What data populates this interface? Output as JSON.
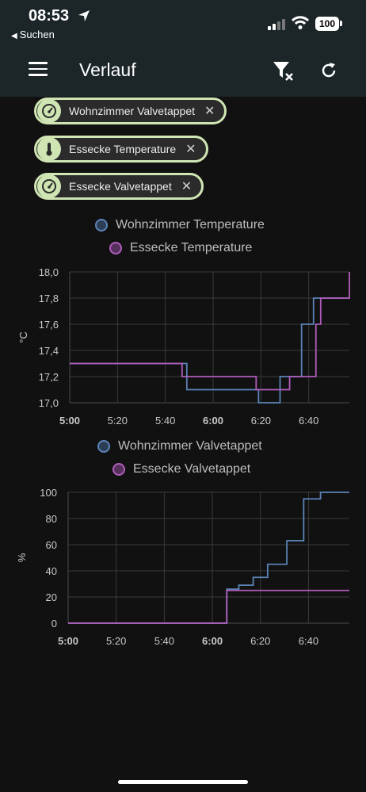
{
  "status_bar": {
    "time": "08:53",
    "back_label": "Suchen",
    "battery": "100"
  },
  "header": {
    "title": "Verlauf"
  },
  "chips": [
    {
      "label": "Wohnzimmer Valvetappet",
      "icon": "gauge-icon"
    },
    {
      "label": "Essecke Temperature",
      "icon": "thermometer-icon"
    },
    {
      "label": "Essecke Valvetappet",
      "icon": "gauge-icon"
    }
  ],
  "colors": {
    "series_blue": "#5b84b8",
    "series_purple": "#b05dbb",
    "chip_accent": "#cfe5b3",
    "header_bg": "#1c2629"
  },
  "chart_data": [
    {
      "type": "line",
      "ylabel": "°C",
      "ylim": [
        17.0,
        18.0
      ],
      "yticks": [
        "17,0",
        "17,2",
        "17,4",
        "17,6",
        "17,8",
        "18,0"
      ],
      "xlim": [
        "5:00",
        "6:57"
      ],
      "xticks": [
        "5:00",
        "5:20",
        "5:40",
        "6:00",
        "6:20",
        "6:40"
      ],
      "step": true,
      "grid": true,
      "legend_position": "top",
      "series": [
        {
          "name": "Wohnzimmer Temperature",
          "color": "#5b84b8",
          "x": [
            "5:00",
            "5:49",
            "6:19",
            "6:28",
            "6:37",
            "6:42",
            "6:57"
          ],
          "y": [
            17.3,
            17.1,
            17.0,
            17.2,
            17.6,
            17.8,
            17.8
          ]
        },
        {
          "name": "Essecke Temperature",
          "color": "#b05dbb",
          "x": [
            "5:00",
            "5:47",
            "6:18",
            "6:32",
            "6:43",
            "6:45",
            "6:57"
          ],
          "y": [
            17.3,
            17.2,
            17.1,
            17.2,
            17.6,
            17.8,
            18.0
          ]
        }
      ]
    },
    {
      "type": "line",
      "ylabel": "%",
      "ylim": [
        0,
        100
      ],
      "yticks": [
        "0",
        "20",
        "40",
        "60",
        "80",
        "100"
      ],
      "xlim": [
        "5:00",
        "6:57"
      ],
      "xticks": [
        "5:00",
        "5:20",
        "5:40",
        "6:00",
        "6:20",
        "6:40"
      ],
      "step": true,
      "grid": true,
      "legend_position": "top",
      "series": [
        {
          "name": "Wohnzimmer Valvetappet",
          "color": "#5b84b8",
          "x": [
            "5:00",
            "6:06",
            "6:11",
            "6:17",
            "6:23",
            "6:31",
            "6:38",
            "6:45",
            "6:57"
          ],
          "y": [
            0,
            26,
            29,
            35,
            45,
            63,
            95,
            100,
            100
          ]
        },
        {
          "name": "Essecke Valvetappet",
          "color": "#b05dbb",
          "x": [
            "5:00",
            "6:06",
            "6:57"
          ],
          "y": [
            0,
            25,
            25
          ]
        }
      ]
    }
  ]
}
